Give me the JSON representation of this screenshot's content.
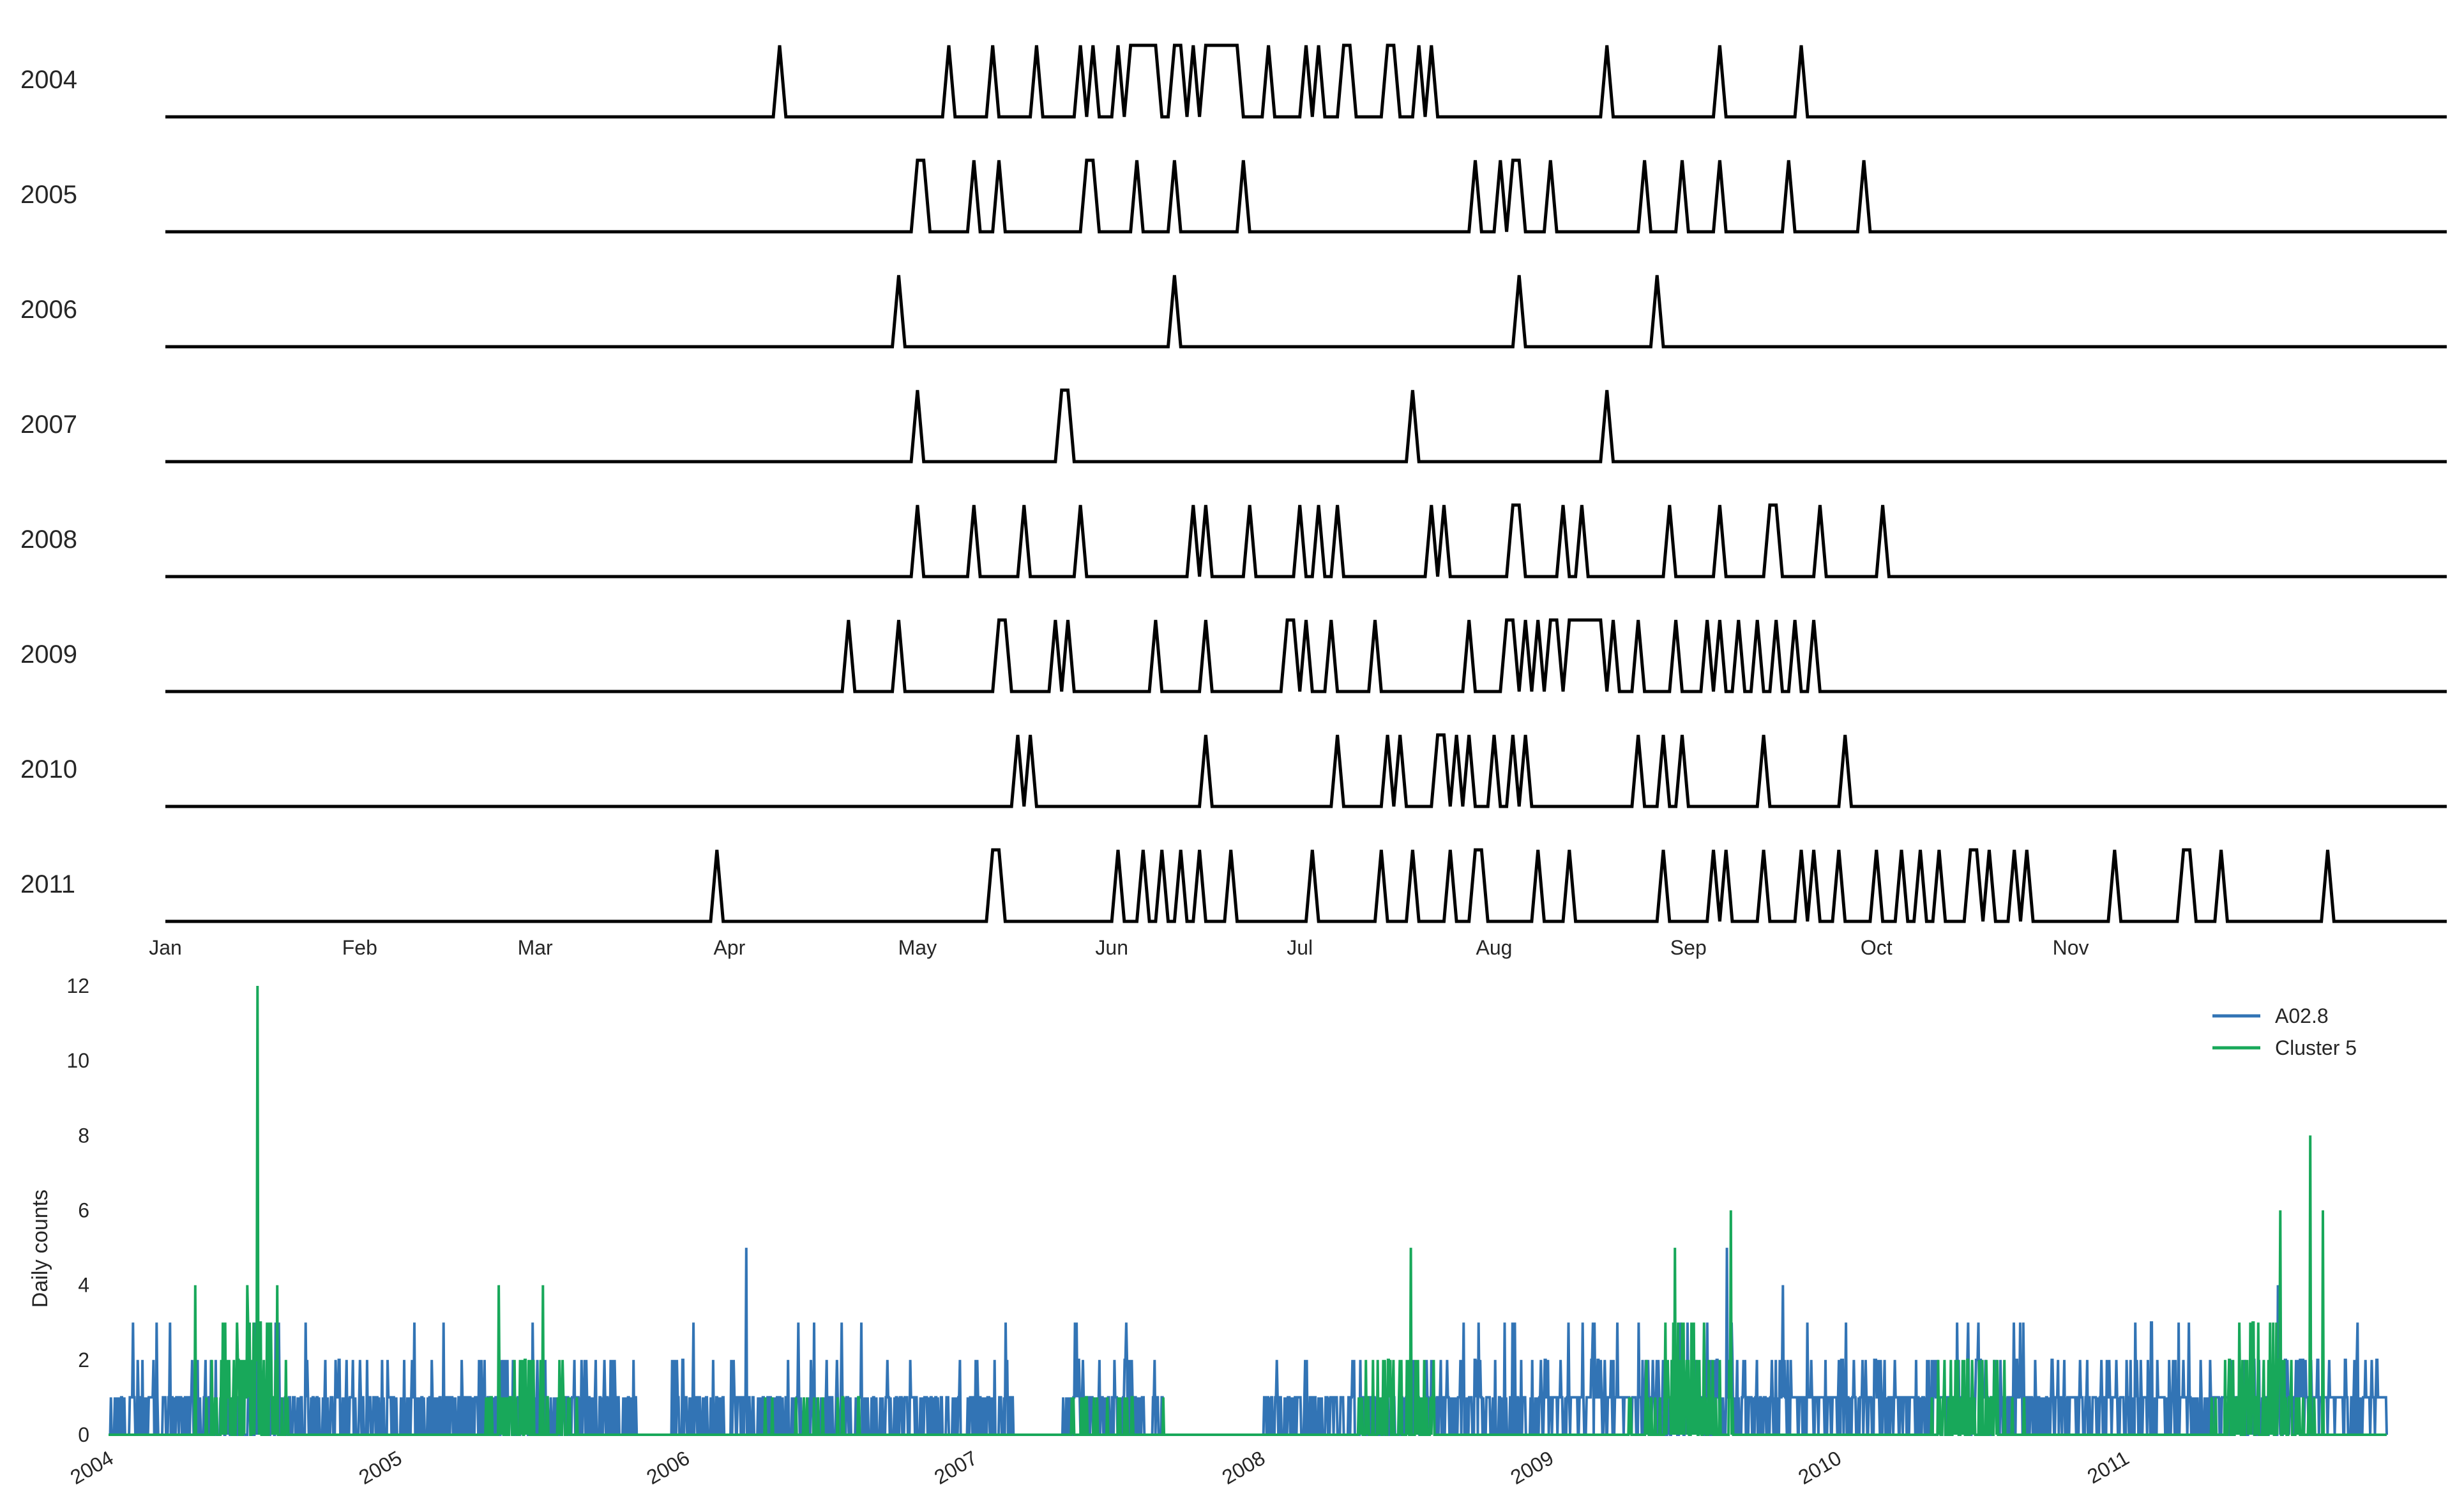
{
  "chart_data": [
    {
      "type": "line",
      "title": "",
      "xlabel": "",
      "ylabel": "",
      "x_axis": "day of year",
      "month_ticks": [
        "Jan",
        "Feb",
        "Mar",
        "Apr",
        "May",
        "Jun",
        "Jul",
        "Aug",
        "Sep",
        "Oct",
        "Nov"
      ],
      "series_color": "#000000",
      "grid": false,
      "series": [
        {
          "year": "2004",
          "event_days": [
            99,
            126,
            133,
            140,
            147,
            149,
            153,
            155,
            156,
            157,
            158,
            159,
            162,
            163,
            165,
            167,
            168,
            169,
            170,
            171,
            172,
            177,
            183,
            185,
            189,
            190,
            196,
            197,
            201,
            203,
            231,
            249,
            262
          ]
        },
        {
          "year": "2005",
          "event_days": [
            121,
            122,
            130,
            134,
            148,
            149,
            156,
            162,
            173,
            210,
            214,
            216,
            217,
            222,
            237,
            243,
            249,
            260,
            272
          ]
        },
        {
          "year": "2006",
          "event_days": [
            118,
            162,
            217,
            239
          ]
        },
        {
          "year": "2007",
          "event_days": [
            121,
            144,
            145,
            200,
            231
          ]
        },
        {
          "year": "2008",
          "event_days": [
            121,
            130,
            138,
            147,
            165,
            167,
            174,
            182,
            185,
            188,
            203,
            205,
            216,
            217,
            224,
            227,
            241,
            249,
            257,
            258,
            265,
            275
          ]
        },
        {
          "year": "2009",
          "event_days": [
            110,
            118,
            134,
            135,
            143,
            145,
            159,
            167,
            180,
            181,
            183,
            187,
            194,
            209,
            215,
            216,
            218,
            220,
            222,
            223,
            225,
            226,
            227,
            228,
            229,
            230,
            232,
            236,
            242,
            247,
            249,
            252,
            255,
            258,
            261,
            264
          ]
        },
        {
          "year": "2010",
          "event_days": [
            137,
            139,
            167,
            188,
            196,
            198,
            204,
            205,
            207,
            209,
            213,
            216,
            218,
            236,
            240,
            243,
            256,
            269
          ]
        },
        {
          "year": "2011",
          "event_days": [
            89,
            133,
            134,
            153,
            157,
            160,
            163,
            166,
            171,
            184,
            195,
            200,
            206,
            210,
            211,
            220,
            225,
            240,
            248,
            250,
            256,
            262,
            264,
            268,
            274,
            278,
            281,
            284,
            289,
            290,
            292,
            296,
            298,
            312,
            323,
            324,
            329,
            346
          ]
        }
      ]
    },
    {
      "type": "line",
      "title": "",
      "xlabel": "",
      "ylabel": "Daily counts",
      "ylim": [
        0,
        12
      ],
      "y_ticks": [
        "0",
        "2",
        "4",
        "6",
        "8",
        "10",
        "12"
      ],
      "x_ticks": [
        "2004",
        "2005",
        "2006",
        "2007",
        "2008",
        "2009",
        "2010",
        "2011"
      ],
      "x_range": [
        "2004-01-01",
        "2011-11-30"
      ],
      "legend_position": "top-right",
      "grid": false,
      "series": [
        {
          "name": "A02.8",
          "color": "#3274b5",
          "description_of_values": "daily counts mostly 0-2 with occasional 3-5",
          "notable_peaks": [
            {
              "date": "2006-03-20",
              "value": 5
            },
            {
              "date": "2009-08-15",
              "value": 5
            },
            {
              "date": "2009-10-25",
              "value": 4
            },
            {
              "date": "2011-07-15",
              "value": 4
            }
          ]
        },
        {
          "name": "Cluster 5",
          "color": "#18a85a",
          "description_of_values": "seasonal bursts in late spring / summer each year",
          "notable_peaks": [
            {
              "date": "2004-04-20",
              "value": 4
            },
            {
              "date": "2004-06-25",
              "value": 4
            },
            {
              "date": "2004-07-08",
              "value": 12
            },
            {
              "date": "2004-08-02",
              "value": 4
            },
            {
              "date": "2005-05-10",
              "value": 4
            },
            {
              "date": "2005-07-05",
              "value": 4
            },
            {
              "date": "2008-07-10",
              "value": 5
            },
            {
              "date": "2009-06-10",
              "value": 5
            },
            {
              "date": "2009-08-20",
              "value": 6
            },
            {
              "date": "2011-07-18",
              "value": 6
            },
            {
              "date": "2011-08-25",
              "value": 8
            },
            {
              "date": "2011-09-10",
              "value": 6
            }
          ]
        }
      ]
    }
  ]
}
